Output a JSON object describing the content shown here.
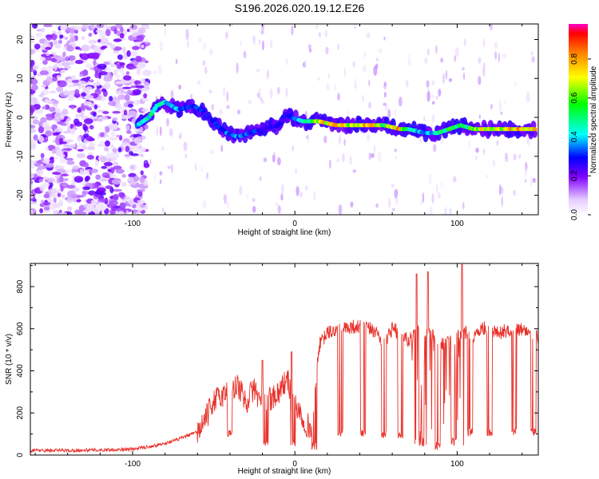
{
  "title": "S196.2026.020.19.12.E26",
  "chart_data": [
    {
      "type": "heatmap",
      "xlabel": "Height of straight line (km)",
      "ylabel": "Frequency (Hz)",
      "xlim": [
        -163,
        150
      ],
      "ylim": [
        -25,
        24
      ],
      "xticks": [
        -100,
        0,
        100
      ],
      "yticks": [
        -20,
        -10,
        0,
        10,
        20
      ],
      "colorbar": {
        "label": "Normalized spectral amplitude",
        "range": [
          0,
          0.98
        ],
        "ticks": [
          0.0,
          0.2,
          0.4,
          0.6,
          0.8
        ]
      },
      "ridge_x": [
        -97,
        -90,
        -85,
        -80,
        -72,
        -62,
        -55,
        -48,
        -42,
        -35,
        -28,
        -20,
        -10,
        -6,
        -2,
        5,
        15,
        25,
        35,
        45,
        55,
        65,
        70,
        80,
        88,
        95,
        102,
        110,
        120,
        130,
        140,
        148
      ],
      "ridge_y": [
        -2,
        0,
        3,
        4,
        2,
        3,
        1,
        -2,
        -4,
        -5,
        -4,
        -3,
        -2,
        1,
        0,
        -1,
        -1,
        -2,
        -2,
        -2,
        -2,
        -3,
        -3,
        -4,
        -4,
        -3,
        -2,
        -3,
        -3,
        -3,
        -3,
        -3
      ],
      "ridge_amplitude": [
        0.45,
        0.5,
        0.55,
        0.45,
        0.4,
        0.35,
        0.3,
        0.35,
        0.4,
        0.4,
        0.35,
        0.3,
        0.3,
        0.3,
        0.35,
        0.45,
        0.75,
        0.95,
        0.7,
        0.9,
        0.65,
        0.9,
        0.5,
        0.4,
        0.5,
        0.6,
        0.55,
        0.7,
        0.8,
        0.8,
        0.85,
        0.8
      ],
      "noise_region_x": [
        -163,
        -97
      ]
    },
    {
      "type": "line",
      "xlabel": "Height of straight line (km)",
      "ylabel": "SNR (10 * v/v)",
      "xlim": [
        -163,
        150
      ],
      "ylim": [
        0,
        910
      ],
      "xticks": [
        -100,
        0,
        100
      ],
      "yticks": [
        0,
        200,
        400,
        600,
        800
      ],
      "color": "#e8312a",
      "series": [
        {
          "name": "SNR",
          "x": [
            -163,
            -140,
            -120,
            -100,
            -90,
            -80,
            -70,
            -60,
            -55,
            -50,
            -45,
            -40,
            -35,
            -30,
            -25,
            -20,
            -15,
            -10,
            -5,
            0,
            5,
            10,
            15,
            20,
            25,
            30,
            35,
            40,
            45,
            50,
            55,
            60,
            65,
            70,
            75,
            80,
            85,
            90,
            95,
            100,
            105,
            110,
            115,
            120,
            125,
            130,
            135,
            140,
            145,
            150
          ],
          "y": [
            22,
            22,
            24,
            28,
            40,
            55,
            80,
            110,
            170,
            260,
            280,
            310,
            330,
            250,
            320,
            230,
            270,
            300,
            360,
            260,
            170,
            120,
            520,
            580,
            590,
            600,
            610,
            610,
            600,
            590,
            520,
            600,
            580,
            540,
            590,
            580,
            560,
            520,
            540,
            560,
            580,
            560,
            600,
            600,
            580,
            590,
            600,
            600,
            580,
            560
          ],
          "dips": [
            {
              "x": -40,
              "min": 80
            },
            {
              "x": -18,
              "min": 40
            },
            {
              "x": -1,
              "min": 40
            },
            {
              "x": 12,
              "min": 20
            },
            {
              "x": 28,
              "min": 90
            },
            {
              "x": 42,
              "min": 80
            },
            {
              "x": 55,
              "min": 80
            },
            {
              "x": 65,
              "min": 80
            },
            {
              "x": 78,
              "min": 40
            },
            {
              "x": 88,
              "min": 20
            },
            {
              "x": 98,
              "min": 40
            },
            {
              "x": 108,
              "min": 90
            },
            {
              "x": 120,
              "min": 90
            },
            {
              "x": 135,
              "min": 90
            },
            {
              "x": 147,
              "min": 90
            }
          ],
          "spikes": [
            {
              "x": 75,
              "max": 860
            },
            {
              "x": 82,
              "max": 870
            },
            {
              "x": 103,
              "max": 905
            },
            {
              "x": -20,
              "max": 450
            },
            {
              "x": -2,
              "max": 490
            }
          ]
        }
      ]
    }
  ]
}
